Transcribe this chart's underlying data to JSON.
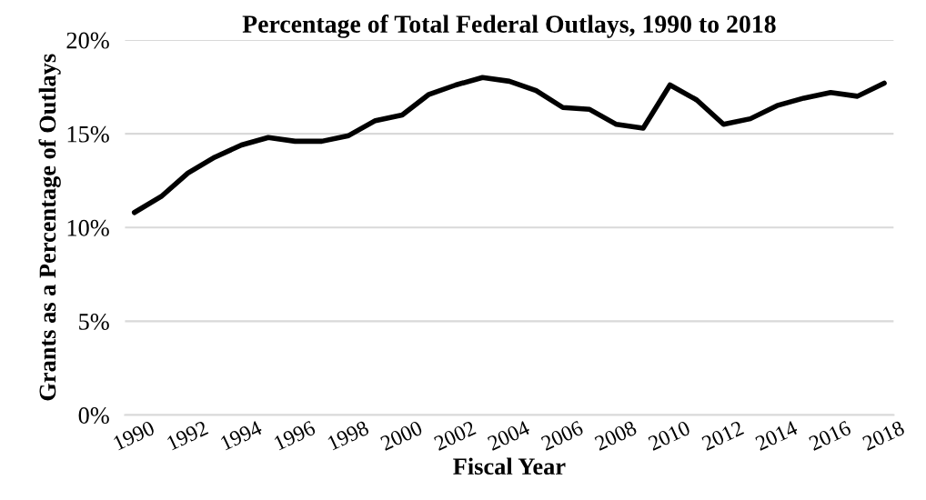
{
  "chart_data": {
    "type": "line",
    "title": "Percentage of Total Federal Outlays, 1990 to 2018",
    "xlabel": "Fiscal Year",
    "ylabel": "Grants as a Percentage of Outlays",
    "categories": [
      "1990",
      null,
      "1992",
      null,
      "1994",
      null,
      "1996",
      null,
      "1998",
      null,
      "2000",
      null,
      "2002",
      null,
      "2004",
      null,
      "2006",
      null,
      "2008",
      null,
      "2010",
      null,
      "2012",
      null,
      "2014",
      null,
      "2016",
      null,
      "2018"
    ],
    "series": [
      {
        "color": "#000000",
        "values": [
          10.8,
          11.65,
          12.9,
          13.75,
          14.4,
          14.8,
          14.6,
          14.6,
          14.9,
          15.7,
          16.0,
          17.1,
          17.6,
          18.0,
          17.8,
          17.3,
          16.4,
          16.3,
          15.5,
          15.3,
          17.6,
          16.8,
          15.5,
          15.8,
          16.5,
          16.9,
          17.2,
          17.0,
          17.7
        ]
      }
    ],
    "ylim": [
      0,
      20
    ],
    "yticks": [
      {
        "value": 0,
        "label": "0%"
      },
      {
        "value": 5,
        "label": "5%"
      },
      {
        "value": 10,
        "label": "10%"
      },
      {
        "value": 15,
        "label": "15%"
      },
      {
        "value": 20,
        "label": "20%"
      }
    ],
    "grid": "y",
    "legend": false,
    "marker": "none",
    "line_style": "solid"
  }
}
